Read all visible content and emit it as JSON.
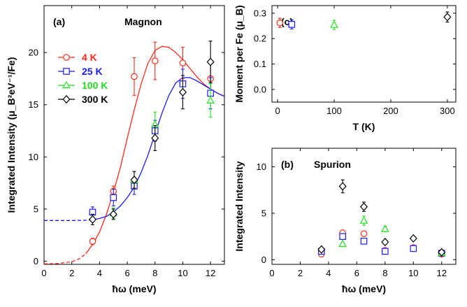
{
  "colors": {
    "4K": "#ff2a1a",
    "25K": "#1a1aff",
    "100K": "#22e022",
    "300K": "#000000"
  },
  "chart_data": [
    {
      "id": "a",
      "type": "scatter",
      "title": "Magnon",
      "panel_label": "(a)",
      "xlabel": "ħω (meV)",
      "ylabel": "Integrated Intensity (μ_B²eV⁻¹/Fe)",
      "xlim": [
        0,
        13
      ],
      "ylim": [
        -0.3,
        24.5
      ],
      "xticks": [
        0,
        2,
        4,
        6,
        8,
        10,
        12
      ],
      "yticks": [
        0,
        5,
        10,
        15,
        20
      ],
      "legend": "upper-left",
      "series": [
        {
          "name": "4 K",
          "color": "#ff2a1a",
          "marker": "circle",
          "x": [
            3.5,
            5,
            6.5,
            8,
            10,
            12
          ],
          "y": [
            1.9,
            6.7,
            17.7,
            19.2,
            19.0,
            17.5
          ],
          "err": [
            0.3,
            0.5,
            1.8,
            1.8,
            1.5,
            1.6
          ]
        },
        {
          "name": "25 K",
          "color": "#1a1aff",
          "marker": "square",
          "x": [
            3.5,
            5,
            6.5,
            8,
            10,
            12
          ],
          "y": [
            4.7,
            6.1,
            7.2,
            12.5,
            17.0,
            16.1
          ],
          "err": [
            0.5,
            0.8,
            0.8,
            1.0,
            1.4,
            1.5
          ]
        },
        {
          "name": "100 K",
          "color": "#22e022",
          "marker": "triangle",
          "x": [
            5,
            6.5,
            8,
            12
          ],
          "y": [
            4.6,
            7.8,
            13.1,
            15.4
          ],
          "err": [
            0.5,
            0.8,
            1.2,
            1.6
          ]
        },
        {
          "name": "300 K",
          "color": "#000000",
          "marker": "diamond",
          "x": [
            3.5,
            5,
            6.5,
            8,
            10,
            12
          ],
          "y": [
            4.0,
            4.5,
            7.8,
            11.8,
            16.2,
            19.1
          ],
          "err": [
            0.5,
            0.5,
            0.8,
            1.2,
            1.6,
            2.0
          ]
        }
      ],
      "fit_curves": [
        {
          "for": "4 K",
          "color": "#ff2a1a",
          "x": [
            0,
            1,
            2,
            2.5,
            3,
            3.5,
            4,
            4.5,
            5,
            5.5,
            6,
            6.5,
            7,
            7.5,
            8,
            8.5,
            9,
            9.5,
            10,
            10.5,
            11,
            11.5,
            12,
            12.5,
            13
          ],
          "y": [
            -0.25,
            -0.22,
            -0.05,
            0.2,
            0.7,
            1.6,
            2.8,
            4.5,
            6.6,
            9.0,
            11.8,
            14.5,
            17.0,
            19.0,
            20.2,
            20.6,
            20.5,
            20.0,
            19.3,
            18.5,
            17.7,
            17.0,
            16.5,
            16.1,
            15.8
          ],
          "dashed_below_x": 3
        },
        {
          "for": "25 K",
          "color": "#1a1aff",
          "x": [
            0,
            1,
            2,
            3,
            3.5,
            4,
            4.5,
            5,
            5.5,
            6,
            6.5,
            7,
            7.5,
            8,
            8.5,
            9,
            9.5,
            10,
            10.5,
            11,
            11.5,
            12,
            12.5,
            13
          ],
          "y": [
            3.9,
            3.9,
            3.9,
            3.92,
            3.97,
            4.1,
            4.3,
            4.7,
            5.3,
            6.1,
            7.1,
            8.5,
            10.2,
            12.2,
            14.2,
            15.9,
            17.1,
            17.6,
            17.6,
            17.3,
            16.9,
            16.5,
            16.1,
            15.8
          ],
          "dashed_below_x": 3.5
        }
      ]
    },
    {
      "id": "c",
      "type": "scatter",
      "panel_label": "(c)",
      "xlabel": "T (K)",
      "ylabel": "Moment per Fe (μ_B)",
      "xlim": [
        -10,
        315
      ],
      "ylim": [
        -0.05,
        0.33
      ],
      "xticks": [
        0,
        100,
        200,
        300
      ],
      "yticks": [
        0.0,
        0.1,
        0.2,
        0.3
      ],
      "ytick_labels": [
        "0.0",
        "0.1",
        "0.2",
        "0.3"
      ],
      "series": [
        {
          "name": "4 K",
          "color": "#ff2a1a",
          "marker": "circle",
          "x": [
            4
          ],
          "y": [
            0.262
          ],
          "err": [
            0.018
          ]
        },
        {
          "name": "25 K",
          "color": "#1a1aff",
          "marker": "square",
          "x": [
            25
          ],
          "y": [
            0.256
          ],
          "err": [
            0.018
          ]
        },
        {
          "name": "100 K",
          "color": "#22e022",
          "marker": "triangle",
          "x": [
            100
          ],
          "y": [
            0.254
          ],
          "err": [
            0.018
          ]
        },
        {
          "name": "300 K",
          "color": "#000000",
          "marker": "diamond",
          "x": [
            300
          ],
          "y": [
            0.285
          ],
          "err": [
            0.02
          ]
        }
      ]
    },
    {
      "id": "b",
      "type": "scatter",
      "title": "Spurion",
      "panel_label": "(b)",
      "xlabel": "ħω (meV)",
      "ylabel": "Integrated Intensity",
      "xlim": [
        0,
        13
      ],
      "ylim": [
        -0.5,
        12
      ],
      "xticks": [
        0,
        2,
        4,
        6,
        8,
        10,
        12
      ],
      "yticks": [
        0,
        5,
        10
      ],
      "series": [
        {
          "name": "4 K",
          "color": "#ff2a1a",
          "marker": "circle",
          "x": [
            3.5,
            5,
            6.5,
            8,
            10,
            12
          ],
          "y": [
            0.6,
            2.9,
            2.8,
            1.0,
            1.3,
            0.6
          ],
          "err": [
            0,
            0,
            0,
            0,
            0,
            0
          ]
        },
        {
          "name": "25 K",
          "color": "#1a1aff",
          "marker": "square",
          "x": [
            3.5,
            5,
            6.5,
            8,
            10,
            12
          ],
          "y": [
            0.9,
            2.5,
            2.0,
            0.9,
            1.2,
            0.7
          ],
          "err": [
            0,
            0,
            0,
            0,
            0,
            0
          ]
        },
        {
          "name": "100 K",
          "color": "#22e022",
          "marker": "triangle",
          "x": [
            5,
            6.5,
            8,
            12
          ],
          "y": [
            1.7,
            4.2,
            3.3,
            0.7
          ],
          "err": [
            0,
            0.5,
            0.3,
            0
          ]
        },
        {
          "name": "300 K",
          "color": "#000000",
          "marker": "diamond",
          "x": [
            3.5,
            5,
            6.5,
            8,
            10,
            12
          ],
          "y": [
            1.1,
            7.9,
            5.7,
            1.9,
            2.3,
            0.8
          ],
          "err": [
            0,
            0.7,
            0.5,
            0,
            0,
            0
          ]
        }
      ]
    }
  ]
}
